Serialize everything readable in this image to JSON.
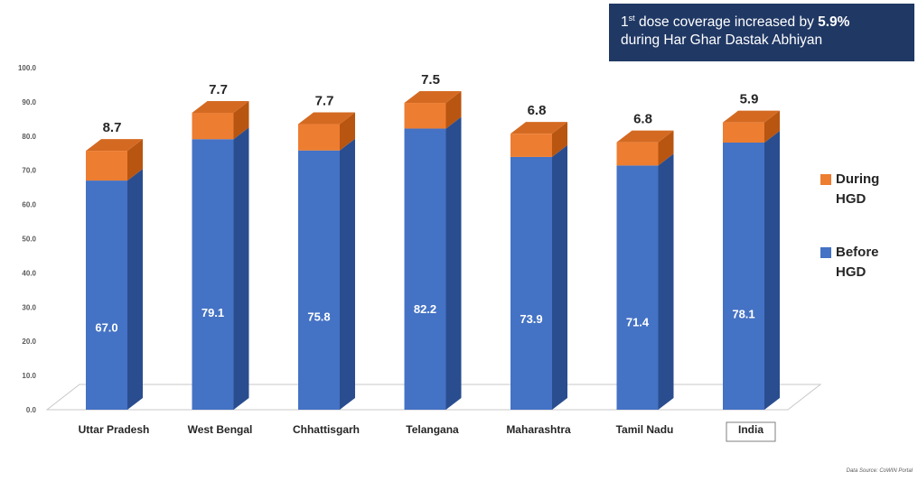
{
  "callout": {
    "line1_prefix": "1",
    "line1_sup": "st",
    "line1_mid": " dose coverage increased by ",
    "line1_value": "5.9%",
    "line2": "during Har Ghar Dastak Abhiyan"
  },
  "legend": [
    {
      "label": "During HGD",
      "color": "#ed7d31"
    },
    {
      "label": "Before HGD",
      "color": "#4472c4"
    }
  ],
  "source": "Data Source: CoWIN Portal",
  "colors": {
    "during_front": "#ed7d31",
    "during_side": "#b85510",
    "during_top": "#d46a22",
    "before_front": "#4472c4",
    "before_side": "#2a4d8f",
    "floor": "#ffffff",
    "floor_line": "#c8c8c8"
  },
  "chart_data": {
    "type": "bar",
    "stacked": true,
    "categories": [
      "Uttar Pradesh",
      "West Bengal",
      "Chhattisgarh",
      "Telangana",
      "Maharashtra",
      "Tamil Nadu",
      "India"
    ],
    "series": [
      {
        "name": "Before HGD",
        "values": [
          67.0,
          79.1,
          75.8,
          82.2,
          73.9,
          71.4,
          78.1
        ]
      },
      {
        "name": "During HGD",
        "values": [
          8.7,
          7.7,
          7.7,
          7.5,
          6.8,
          6.8,
          5.9
        ]
      }
    ],
    "before_labels": [
      "67.0",
      "79.1",
      "75.8",
      "82.2",
      "73.9",
      "71.4",
      "78.1"
    ],
    "during_labels": [
      "8.7",
      "7.7",
      "7.7",
      "7.5",
      "6.8",
      "6.8",
      "5.9"
    ],
    "y_ticks": [
      "0.0",
      "10.0",
      "20.0",
      "30.0",
      "40.0",
      "50.0",
      "60.0",
      "70.0",
      "80.0",
      "90.0",
      "100.0"
    ],
    "ylim": [
      0,
      100
    ],
    "legend_position": "right",
    "highlighted_category": "India",
    "grid": false
  }
}
